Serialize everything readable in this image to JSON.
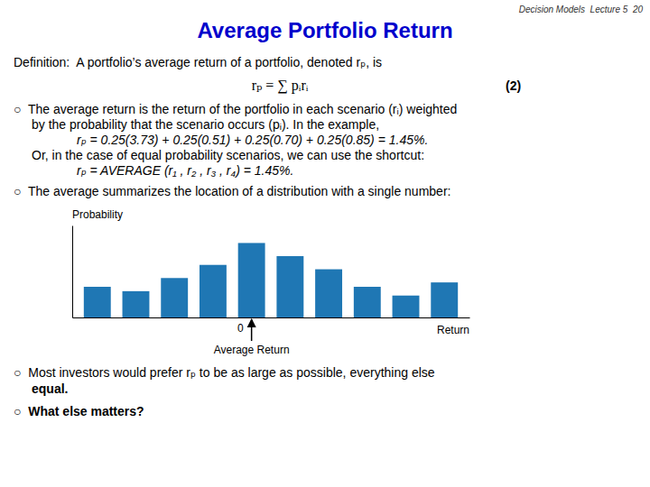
{
  "chart_data": {
    "type": "bar",
    "title": "Average Portfolio Return",
    "subtitle": "Decision Models  Lecture 5  20",
    "categories": [
      null,
      null,
      null,
      null,
      null,
      null,
      null,
      null,
      null,
      null
    ],
    "values": [
      0.35,
      0.3,
      0.45,
      0.6,
      0.85,
      0.7,
      0.55,
      0.35,
      0.25,
      0.4
    ],
    "x_label": "Return",
    "y_label": "Probability",
    "ylim": [
      0,
      1.05
    ],
    "yticks": [],
    "tick_labels": false,
    "grid": false,
    "annotations": [
      {
        "text": "Definition:  A portfolio’s average return of a portfolio, denoted rₚ, is"
      },
      {
        "text": "rₚ = ∑ pᵢrᵢ"
      },
      {
        "text": "(2)"
      },
      {
        "text": "○  The average return is the return of the portfolio in each scenario (rᵢ) weighted"
      },
      {
        "text": "by the probability that the scenario occurs (pᵢ). In the example,"
      },
      {
        "text": "rₚ = 0.25(3.73) + 0.25(0.51) + 0.25(0.70) + 0.25(0.85) = 1.45%."
      },
      {
        "text": "Or, in the case of equal probability scenarios, we can use the shortcut:"
      },
      {
        "text": "rₚ = AVERAGE (r₁ , r₂ , r₃ , r₄) = 1.45%."
      },
      {
        "text": "○  The average summarizes the location of a distribution with a single number:"
      },
      {
        "text": "○  Most investors would prefer rₚ to be as large as possible, everything else"
      },
      {
        "text": "equal."
      },
      {
        "text": "○  What else matters?"
      },
      {
        "text": "0",
        "x": 4
      },
      {
        "text": "Average Return",
        "x": 4
      }
    ]
  }
}
